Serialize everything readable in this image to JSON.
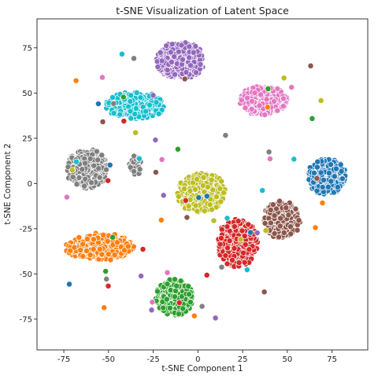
{
  "chart_data": {
    "type": "scatter",
    "title": "t-SNE Visualization of Latent Space",
    "xlabel": "t-SNE Component 1",
    "ylabel": "t-SNE Component 2",
    "xlim": [
      -90,
      95
    ],
    "ylim": [
      -92,
      91
    ],
    "xticks": [
      -75,
      -50,
      -25,
      0,
      25,
      50,
      75
    ],
    "yticks": [
      -75,
      -50,
      -25,
      0,
      25,
      50,
      75
    ],
    "grid": false,
    "legend": "none",
    "marker_edge_color": "#ffffff",
    "clusters": [
      {
        "color": "#9467bd",
        "center": [
          -10,
          68
        ],
        "spread": [
          13,
          10
        ],
        "count": 330
      },
      {
        "color": "#e377c2",
        "center": [
          37,
          46
        ],
        "spread": [
          13,
          8
        ],
        "count": 300
      },
      {
        "color": "#17becf",
        "center": [
          -35,
          43
        ],
        "spread": [
          16,
          7
        ],
        "count": 300
      },
      {
        "color": "#7f7f7f",
        "center": [
          -62,
          8
        ],
        "spread": [
          11,
          11
        ],
        "count": 280
      },
      {
        "color": "#7f7f7f",
        "center": [
          -35,
          10
        ],
        "spread": [
          3.5,
          5
        ],
        "count": 45
      },
      {
        "color": "#1f77b4",
        "center": [
          72,
          4
        ],
        "spread": [
          10,
          10
        ],
        "count": 290
      },
      {
        "color": "#bcbd22",
        "center": [
          2,
          -5
        ],
        "spread": [
          13,
          11
        ],
        "count": 310
      },
      {
        "color": "#d62728",
        "center": [
          22,
          -33
        ],
        "spread": [
          11,
          13
        ],
        "count": 310
      },
      {
        "color": "#8c564b",
        "center": [
          47,
          -20
        ],
        "spread": [
          10,
          10
        ],
        "count": 240
      },
      {
        "color": "#ff7f0e",
        "center": [
          -55,
          -35
        ],
        "spread": [
          19,
          7
        ],
        "count": 320
      },
      {
        "color": "#2ca02c",
        "center": [
          -13,
          -63
        ],
        "spread": [
          10,
          10
        ],
        "count": 300
      }
    ],
    "outlier_colors": [
      "#d62728",
      "#2ca02c",
      "#8c564b",
      "#bcbd22",
      "#ff7f0e",
      "#17becf",
      "#9467bd",
      "#1f77b4",
      "#7f7f7f",
      "#e377c2"
    ],
    "outlier_count": 70
  }
}
